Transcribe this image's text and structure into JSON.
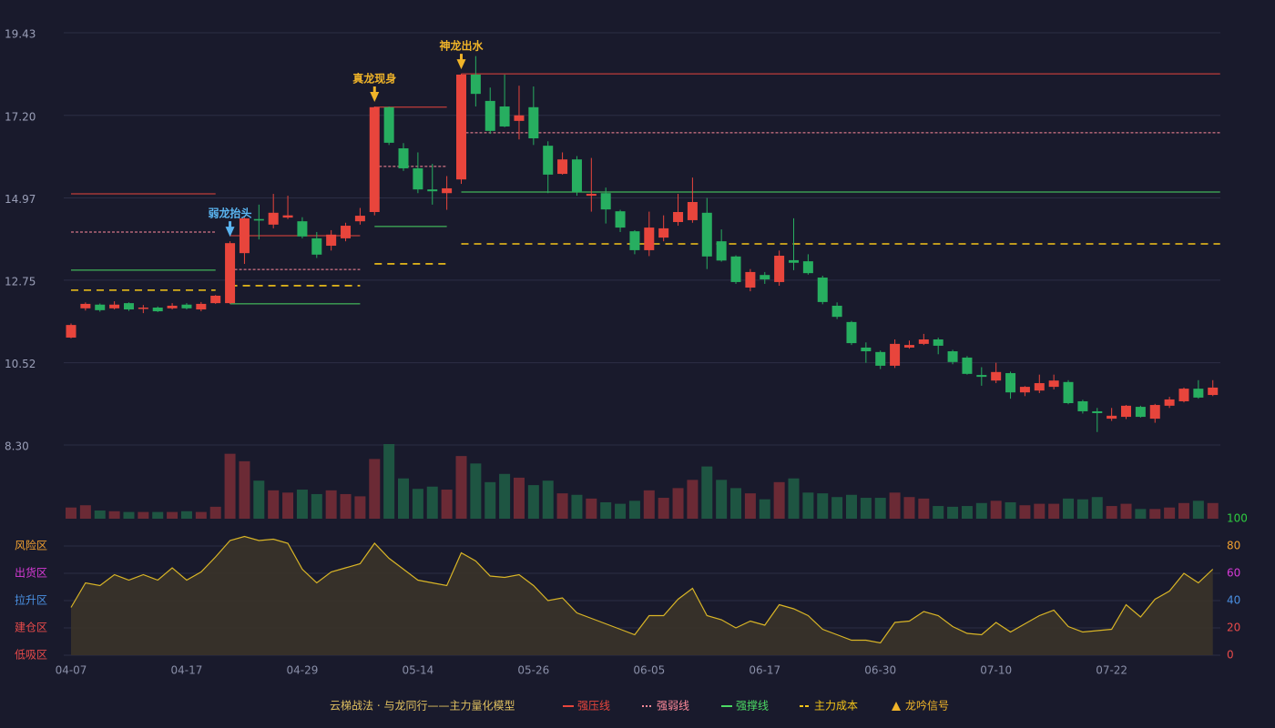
{
  "chart_data": [
    {
      "type": "candlestick",
      "legend_title": "云梯战法 · 与龙同行——主力量化模型",
      "up_color": "#e8453c",
      "down_color": "#27ae60",
      "ylim": [
        8.3,
        19.43
      ],
      "yticks": [
        {
          "value": 8.3,
          "label": "8.30"
        },
        10.52,
        12.75,
        14.97,
        {
          "value": 17.2,
          "label": "17.20"
        },
        19.43
      ],
      "grid": true,
      "open": [
        11.2,
        11.99,
        12.09,
        11.99,
        12.13,
        11.99,
        12.01,
        11.99,
        12.09,
        11.96,
        12.13,
        12.13,
        13.48,
        14.4,
        14.25,
        14.44,
        14.34,
        13.88,
        13.68,
        13.88,
        14.34,
        14.59,
        17.42,
        16.31,
        15.77,
        15.2,
        15.1,
        15.47,
        18.3,
        17.59,
        17.44,
        17.05,
        17.42,
        16.38,
        15.62,
        16.01,
        15.03,
        15.1,
        14.61,
        14.07,
        13.56,
        13.9,
        14.32,
        14.37,
        14.57,
        13.8,
        13.39,
        12.55,
        12.89,
        12.7,
        13.29,
        13.26,
        12.82,
        12.06,
        11.62,
        10.93,
        10.81,
        10.44,
        10.93,
        11.03,
        11.15,
        10.83,
        10.66,
        10.19,
        10.04,
        10.24,
        9.72,
        9.77,
        9.87,
        10.0,
        9.48,
        9.21,
        9.01,
        9.06,
        9.33,
        9.01,
        9.36,
        9.48,
        9.82,
        9.65
      ],
      "high": [
        11.58,
        12.15,
        12.12,
        12.18,
        12.15,
        12.08,
        12.04,
        12.13,
        12.13,
        12.16,
        12.35,
        13.8,
        14.45,
        14.79,
        15.08,
        15.03,
        14.45,
        14.05,
        14.1,
        14.3,
        14.7,
        17.44,
        17.44,
        16.45,
        16.2,
        15.89,
        15.56,
        18.32,
        18.8,
        17.95,
        18.3,
        18.0,
        17.98,
        16.5,
        16.2,
        16.1,
        16.05,
        15.25,
        14.65,
        14.1,
        14.6,
        14.5,
        15.08,
        15.52,
        14.97,
        14.12,
        13.42,
        13.05,
        12.97,
        13.55,
        14.42,
        13.45,
        12.87,
        12.15,
        11.65,
        11.07,
        10.85,
        11.15,
        11.12,
        11.3,
        11.2,
        10.87,
        10.7,
        10.4,
        10.52,
        10.28,
        9.89,
        10.2,
        10.2,
        10.05,
        9.52,
        9.3,
        9.3,
        9.38,
        9.36,
        9.41,
        9.6,
        9.85,
        10.05,
        10.05
      ],
      "low": [
        11.18,
        11.93,
        11.9,
        11.96,
        11.92,
        11.86,
        11.89,
        11.96,
        11.96,
        11.91,
        12.11,
        12.11,
        13.19,
        13.85,
        14.15,
        14.4,
        13.88,
        13.35,
        13.55,
        13.8,
        14.25,
        14.5,
        16.4,
        15.7,
        15.1,
        14.79,
        14.65,
        15.35,
        17.44,
        16.7,
        16.88,
        16.55,
        16.4,
        15.1,
        15.6,
        15.03,
        14.6,
        14.28,
        14.05,
        13.45,
        13.4,
        13.8,
        14.22,
        14.3,
        13.05,
        13.25,
        12.65,
        12.45,
        12.65,
        12.6,
        13.02,
        12.9,
        12.1,
        11.7,
        11.0,
        10.52,
        10.35,
        10.38,
        10.9,
        11.0,
        10.75,
        10.48,
        10.2,
        9.9,
        9.97,
        9.55,
        9.62,
        9.7,
        9.8,
        9.4,
        9.15,
        8.65,
        8.95,
        9.0,
        9.04,
        8.9,
        9.3,
        9.45,
        9.55,
        9.62
      ],
      "close": [
        11.54,
        12.11,
        11.94,
        12.09,
        11.96,
        12.01,
        11.91,
        12.06,
        11.99,
        12.11,
        12.33,
        13.75,
        14.42,
        14.36,
        14.57,
        14.5,
        13.93,
        13.44,
        13.98,
        14.22,
        14.49,
        17.42,
        16.46,
        15.77,
        15.2,
        15.15,
        15.23,
        18.3,
        17.78,
        16.78,
        16.9,
        17.2,
        16.58,
        15.6,
        16.01,
        15.13,
        15.08,
        14.66,
        14.17,
        13.56,
        14.17,
        14.15,
        14.59,
        14.86,
        13.39,
        13.28,
        12.7,
        12.97,
        12.77,
        13.41,
        13.22,
        12.94,
        12.16,
        11.76,
        11.05,
        10.83,
        10.44,
        11.03,
        11.0,
        11.15,
        10.98,
        10.54,
        10.22,
        10.14,
        10.27,
        9.72,
        9.87,
        9.97,
        10.04,
        9.43,
        9.21,
        9.16,
        9.09,
        9.36,
        9.06,
        9.38,
        9.53,
        9.82,
        9.58,
        9.85
      ],
      "levels": [
        {
          "name": "强压线",
          "color": "#e8453c",
          "style": "solid",
          "segments": [
            {
              "start": 0,
              "end": 10,
              "value": 15.08
            },
            {
              "start": 11,
              "end": 20,
              "value": 13.95
            },
            {
              "start": 21,
              "end": 26,
              "value": 17.42
            },
            {
              "start": 27,
              "end": 79,
              "value": 18.32
            }
          ]
        },
        {
          "name": "强弱线",
          "color": "#ff8a9a",
          "style": "dotted",
          "segments": [
            {
              "start": 0,
              "end": 10,
              "value": 14.05
            },
            {
              "start": 11,
              "end": 20,
              "value": 13.04
            },
            {
              "start": 21,
              "end": 26,
              "value": 15.82
            },
            {
              "start": 27,
              "end": 79,
              "value": 16.73
            }
          ]
        },
        {
          "name": "强撑线",
          "color": "#4cd964",
          "style": "solid",
          "segments": [
            {
              "start": 0,
              "end": 10,
              "value": 13.02
            },
            {
              "start": 11,
              "end": 20,
              "value": 12.11
            },
            {
              "start": 21,
              "end": 26,
              "value": 14.2
            },
            {
              "start": 27,
              "end": 79,
              "value": 15.13
            }
          ]
        },
        {
          "name": "主力成本",
          "color": "#f5c518",
          "style": "dashed",
          "segments": [
            {
              "start": 0,
              "end": 10,
              "value": 12.48
            },
            {
              "start": 11,
              "end": 20,
              "value": 12.6
            },
            {
              "start": 21,
              "end": 26,
              "value": 13.19
            },
            {
              "start": 27,
              "end": 79,
              "value": 13.73
            }
          ]
        }
      ],
      "signals": {
        "name": "龙吟信号",
        "color": "#f0b429",
        "items": [
          {
            "index": 11,
            "label": "弱龙抬头",
            "color": "#5ab4f0"
          },
          {
            "index": 21,
            "label": "真龙现身",
            "color": "#f0b429"
          },
          {
            "index": 27,
            "label": "神龙出水",
            "color": "#f0b429"
          }
        ]
      }
    },
    {
      "type": "volume",
      "up_color": "#6b2a35",
      "down_color": "#1e5542",
      "ylim": [
        0,
        100
      ],
      "values": [
        15,
        18,
        11,
        10,
        9,
        9,
        9,
        9,
        10,
        9,
        16,
        87,
        77,
        51,
        38,
        35,
        39,
        33,
        38,
        33,
        30,
        80,
        100,
        54,
        40,
        43,
        39,
        84,
        74,
        49,
        60,
        55,
        45,
        51,
        34,
        32,
        27,
        22,
        20,
        24,
        38,
        28,
        41,
        52,
        70,
        52,
        41,
        34,
        26,
        49,
        54,
        35,
        34,
        29,
        32,
        28,
        28,
        35,
        29,
        27,
        17,
        16,
        17,
        21,
        24,
        22,
        18,
        20,
        20,
        27,
        26,
        29,
        17,
        20,
        13,
        13,
        15,
        21,
        24,
        21
      ]
    },
    {
      "type": "line",
      "color": "#d9b526",
      "area_color": "#3a3329",
      "categories": [
        "04-07",
        null,
        null,
        null,
        null,
        null,
        null,
        null,
        "04-17",
        null,
        null,
        null,
        null,
        null,
        null,
        null,
        "04-29",
        null,
        null,
        null,
        null,
        null,
        null,
        null,
        "05-14",
        null,
        null,
        null,
        null,
        null,
        null,
        null,
        "05-26",
        null,
        null,
        null,
        null,
        null,
        null,
        null,
        "06-05",
        null,
        null,
        null,
        null,
        null,
        null,
        null,
        "06-17",
        null,
        null,
        null,
        null,
        null,
        null,
        null,
        "06-30",
        null,
        null,
        null,
        null,
        null,
        null,
        null,
        "07-10",
        null,
        null,
        null,
        null,
        null,
        null,
        null,
        "07-22",
        null,
        null,
        null,
        null,
        null,
        null,
        null
      ],
      "values": [
        35,
        53,
        51,
        59,
        55,
        59,
        55,
        64,
        55,
        61,
        72,
        84,
        87,
        84,
        85,
        82,
        63,
        53,
        61,
        64,
        67,
        82,
        71,
        63,
        55,
        53,
        51,
        75,
        69,
        58,
        57,
        59,
        51,
        40,
        42,
        31,
        27,
        23,
        19,
        15,
        29,
        29,
        41,
        49,
        29,
        26,
        20,
        25,
        22,
        37,
        34,
        29,
        19,
        15,
        11,
        11,
        9,
        24,
        25,
        32,
        29,
        21,
        16,
        15,
        24,
        17,
        23,
        29,
        33,
        21,
        17,
        18,
        19,
        37,
        28,
        41,
        47,
        60,
        53,
        63
      ],
      "ylim": [
        0,
        100
      ],
      "yticks": [
        {
          "value": 0,
          "label": "低吸区"
        },
        {
          "value": 20,
          "label": "建仓区"
        },
        {
          "value": 40,
          "label": "拉升区"
        },
        {
          "value": 60,
          "label": "出货区"
        },
        {
          "value": 80,
          "label": "风险区"
        }
      ],
      "ytick_colors": [
        "#e84a4a",
        "#e84a4a",
        "#4a90e2",
        "#d63ad6",
        "#f0a030"
      ],
      "y2lim": [
        0,
        100
      ],
      "y2ticks": [
        0,
        20,
        40,
        60,
        80,
        100
      ],
      "y2tick_colors": [
        "#e84a4a",
        "#e84a4a",
        "#4a90e2",
        "#d63ad6",
        "#f0a030",
        "#2ecc40"
      ],
      "grid": true
    }
  ]
}
